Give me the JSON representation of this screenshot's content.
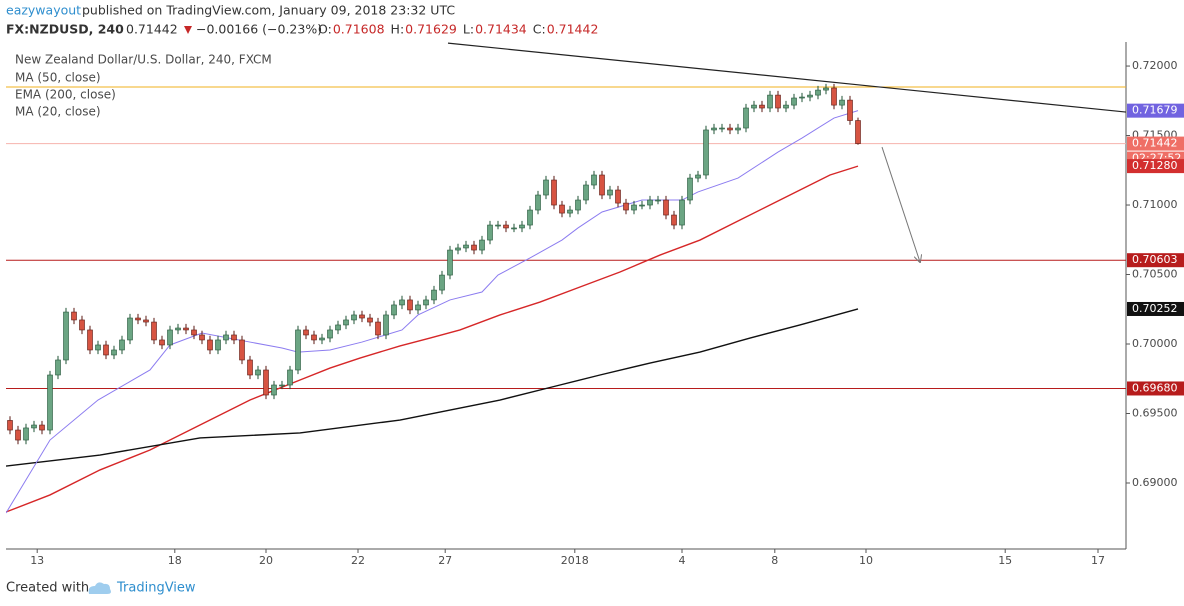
{
  "header": {
    "author": "eazywayout",
    "published": "published on TradingView.com, January 09, 2018 23:32 UTC",
    "symbol": "FX:NZDUSD, 240",
    "last": "0.71442",
    "change": "−0.00166 (−0.23%)",
    "ohlc": [
      {
        "label": "O:",
        "value": "0.71608"
      },
      {
        "label": "H:",
        "value": "0.71629"
      },
      {
        "label": "L:",
        "value": "0.71434"
      },
      {
        "label": "C:",
        "value": "0.71442"
      }
    ]
  },
  "chart_data": {
    "type": "candlestick",
    "title": "New Zealand Dollar/U.S. Dollar, 240, FXCM",
    "color_up": "#6ba583",
    "color_down": "#d75442",
    "edge_up": "#225437",
    "edge_down": "#5b1a13",
    "open": [
      0.6945,
      0.69381,
      0.69309,
      0.69396,
      0.69417,
      0.69381,
      0.69777,
      0.69885,
      0.7023,
      0.70173,
      0.70101,
      0.69957,
      0.69993,
      0.69921,
      0.69957,
      0.70029,
      0.70187,
      0.70173,
      0.70158,
      0.70029,
      0.69993,
      0.70101,
      0.70115,
      0.70101,
      0.70065,
      0.70029,
      0.69957,
      0.70029,
      0.70065,
      0.70029,
      0.69885,
      0.69777,
      0.69813,
      0.69633,
      0.69705,
      0.69705,
      0.69813,
      0.70101,
      0.70065,
      0.70029,
      0.70043,
      0.70101,
      0.70137,
      0.70173,
      0.70209,
      0.70187,
      0.70158,
      0.70065,
      0.70209,
      0.70281,
      0.70317,
      0.70245,
      0.70281,
      0.70317,
      0.70388,
      0.70496,
      0.70676,
      0.70691,
      0.70712,
      0.70676,
      0.70748,
      0.70856,
      0.70856,
      0.70835,
      0.70835,
      0.70856,
      0.70964,
      0.71072,
      0.7118,
      0.71,
      0.70942,
      0.70964,
      0.71036,
      0.71144,
      0.71216,
      0.71072,
      0.71108,
      0.71014,
      0.70964,
      0.71,
      0.71,
      0.71036,
      0.71036,
      0.70928,
      0.70856,
      0.71036,
      0.71194,
      0.71216,
      0.7154,
      0.71554,
      0.71554,
      0.7154,
      0.71554,
      0.71698,
      0.71719,
      0.71698,
      0.71791,
      0.71698,
      0.71719,
      0.7177,
      0.71777,
      0.71791,
      0.71827,
      0.71842,
      0.71719,
      0.71755,
      0.71608
    ],
    "high": [
      0.6948,
      0.69411,
      0.69426,
      0.69447,
      0.69447,
      0.69807,
      0.69915,
      0.7026,
      0.7026,
      0.70203,
      0.70131,
      0.70023,
      0.70023,
      0.69987,
      0.70059,
      0.70217,
      0.70217,
      0.70203,
      0.70188,
      0.70059,
      0.70131,
      0.70145,
      0.70145,
      0.70131,
      0.70095,
      0.70059,
      0.70059,
      0.70095,
      0.70095,
      0.70059,
      0.69915,
      0.69843,
      0.69843,
      0.69735,
      0.69735,
      0.69843,
      0.70131,
      0.70131,
      0.70095,
      0.70073,
      0.70131,
      0.70167,
      0.70203,
      0.70239,
      0.70239,
      0.70217,
      0.70188,
      0.70239,
      0.70311,
      0.70347,
      0.70347,
      0.70311,
      0.70347,
      0.70418,
      0.70526,
      0.70706,
      0.70721,
      0.70742,
      0.70742,
      0.70778,
      0.70886,
      0.70886,
      0.70886,
      0.70865,
      0.70886,
      0.70994,
      0.71102,
      0.7121,
      0.7121,
      0.7103,
      0.70994,
      0.71066,
      0.71174,
      0.71246,
      0.71246,
      0.71138,
      0.71138,
      0.71044,
      0.7103,
      0.7103,
      0.71066,
      0.71066,
      0.71066,
      0.70958,
      0.71066,
      0.71224,
      0.71246,
      0.7157,
      0.71584,
      0.71584,
      0.71584,
      0.71584,
      0.71728,
      0.71749,
      0.71749,
      0.71821,
      0.71821,
      0.71749,
      0.718,
      0.71807,
      0.71821,
      0.71857,
      0.71872,
      0.71872,
      0.71785,
      0.71785,
      0.71629
    ],
    "low": [
      0.69351,
      0.69279,
      0.69279,
      0.69366,
      0.69351,
      0.69351,
      0.69747,
      0.69855,
      0.70143,
      0.70071,
      0.69927,
      0.69927,
      0.69891,
      0.69891,
      0.69927,
      0.69999,
      0.70143,
      0.70128,
      0.69999,
      0.69963,
      0.69963,
      0.70071,
      0.70071,
      0.70035,
      0.69999,
      0.69927,
      0.69927,
      0.69999,
      0.69999,
      0.69855,
      0.69747,
      0.69747,
      0.69603,
      0.69603,
      0.69675,
      0.69675,
      0.69783,
      0.70035,
      0.69999,
      0.69999,
      0.70013,
      0.70071,
      0.70107,
      0.70143,
      0.70157,
      0.70128,
      0.70035,
      0.70035,
      0.70179,
      0.70251,
      0.70215,
      0.70215,
      0.70251,
      0.70287,
      0.70358,
      0.70466,
      0.70646,
      0.70661,
      0.70646,
      0.70646,
      0.70718,
      0.70826,
      0.70805,
      0.70805,
      0.70805,
      0.70826,
      0.70934,
      0.71042,
      0.7097,
      0.70912,
      0.70912,
      0.70934,
      0.71006,
      0.71114,
      0.71042,
      0.71042,
      0.70984,
      0.70934,
      0.70934,
      0.7097,
      0.7097,
      0.71006,
      0.70898,
      0.70826,
      0.70826,
      0.71006,
      0.71164,
      0.71186,
      0.7151,
      0.71524,
      0.7151,
      0.7151,
      0.71524,
      0.71668,
      0.71668,
      0.71668,
      0.71668,
      0.71668,
      0.71689,
      0.7174,
      0.71747,
      0.71761,
      0.71797,
      0.71689,
      0.71689,
      0.71578,
      0.71434
    ],
    "close": [
      0.69381,
      0.69309,
      0.69396,
      0.69417,
      0.69381,
      0.69777,
      0.69885,
      0.7023,
      0.70173,
      0.70101,
      0.69957,
      0.69993,
      0.69921,
      0.69957,
      0.70029,
      0.70187,
      0.70173,
      0.70158,
      0.70029,
      0.69993,
      0.70101,
      0.70115,
      0.70101,
      0.70065,
      0.70029,
      0.69957,
      0.70029,
      0.70065,
      0.70029,
      0.69885,
      0.69777,
      0.69813,
      0.69633,
      0.69705,
      0.69705,
      0.69813,
      0.70101,
      0.70065,
      0.70029,
      0.70043,
      0.70101,
      0.70137,
      0.70173,
      0.70209,
      0.70187,
      0.70158,
      0.70065,
      0.70209,
      0.70281,
      0.70317,
      0.70245,
      0.70281,
      0.70317,
      0.70388,
      0.70496,
      0.70676,
      0.70691,
      0.70712,
      0.70676,
      0.70748,
      0.70856,
      0.70856,
      0.70835,
      0.70835,
      0.70856,
      0.70964,
      0.71072,
      0.7118,
      0.71,
      0.70942,
      0.70964,
      0.71036,
      0.71144,
      0.71216,
      0.71072,
      0.71108,
      0.71014,
      0.70964,
      0.71,
      0.71,
      0.71036,
      0.71036,
      0.70928,
      0.70856,
      0.71036,
      0.71194,
      0.71216,
      0.7154,
      0.71554,
      0.71554,
      0.7154,
      0.71554,
      0.71698,
      0.71719,
      0.71698,
      0.71791,
      0.71698,
      0.71719,
      0.7177,
      0.71777,
      0.71791,
      0.71827,
      0.71842,
      0.71719,
      0.71755,
      0.71608,
      0.71442
    ],
    "series": [
      {
        "name": "MA (50, close)",
        "color": "#d62728",
        "x": [
          -0.5,
          5,
          11.25,
          17.5,
          23.75,
          30,
          36.25,
          40,
          43.75,
          48.75,
          52.5,
          56.25,
          61.25,
          66.25,
          71.25,
          76.25,
          81.25,
          86.25,
          91.25,
          95,
          98.75,
          102.5,
          106
        ],
        "values": [
          0.68791,
          0.68914,
          0.69094,
          0.69237,
          0.69417,
          0.69597,
          0.69741,
          0.69827,
          0.69899,
          0.69986,
          0.70043,
          0.70101,
          0.70209,
          0.70302,
          0.7041,
          0.70518,
          0.7064,
          0.70748,
          0.70892,
          0.71,
          0.71108,
          0.71216,
          0.7128
        ]
      },
      {
        "name": "EMA (200, close)",
        "color": "#111111",
        "x": [
          -0.5,
          11.25,
          23.75,
          36.25,
          48.75,
          61.25,
          68.75,
          73.75,
          80,
          86.25,
          92.5,
          98.75,
          106
        ],
        "values": [
          0.69122,
          0.69201,
          0.69324,
          0.6936,
          0.69453,
          0.69597,
          0.69705,
          0.69777,
          0.69863,
          0.69942,
          0.70043,
          0.70137,
          0.70252
        ]
      },
      {
        "name": "MA (20, close)",
        "color": "#8c7cf0",
        "x": [
          -0.5,
          5,
          11,
          17.5,
          20,
          24,
          30,
          34,
          36,
          40,
          44,
          49,
          51,
          55,
          59,
          61,
          65,
          69,
          71,
          74,
          79,
          84,
          86,
          91,
          96,
          99,
          103,
          106
        ],
        "values": [
          0.68784,
          0.69309,
          0.69597,
          0.69813,
          0.69993,
          0.70079,
          0.70014,
          0.69971,
          0.69942,
          0.69957,
          0.70014,
          0.70101,
          0.70209,
          0.70317,
          0.70374,
          0.70496,
          0.70619,
          0.70748,
          0.70835,
          0.7095,
          0.71036,
          0.71036,
          0.71094,
          0.71194,
          0.71381,
          0.71482,
          0.71626,
          0.71679
        ]
      }
    ],
    "hlines": [
      {
        "value": 0.71849,
        "color": "#f2b01e"
      },
      {
        "value": 0.70603,
        "color": "#b71c1c"
      },
      {
        "value": 0.6968,
        "color": "#b71c1c"
      },
      {
        "value": 0.71442,
        "color": "#f6b3ad"
      }
    ],
    "trendline": {
      "x": [
        54.75,
        139.5
      ],
      "values": [
        0.72165,
        0.71669
      ],
      "color": "#222222"
    },
    "arrow": {
      "x": [
        109,
        113.75
      ],
      "values": [
        0.71417,
        0.7059
      ],
      "color": "#777777"
    },
    "price_tags": [
      {
        "value": 0.71679,
        "label": "0.71679",
        "color": "#7163e0"
      },
      {
        "value": 0.71442,
        "label": "0.71442",
        "color": "#ef6f66"
      },
      {
        "value": 0.7128,
        "label": "0.71280",
        "color": "#d32f2f"
      },
      {
        "value": 0.70603,
        "label": "0.70603",
        "color": "#b71c1c"
      },
      {
        "value": 0.70252,
        "label": "0.70252",
        "color": "#111111"
      },
      {
        "value": 0.6968,
        "label": "0.69680",
        "color": "#b71c1c"
      }
    ],
    "countdown": "02:27:52",
    "xlim": [
      -0.5,
      139.5
    ],
    "ylim": [
      0.68525,
      0.72173
    ],
    "yticks": [
      {
        "value": 0.69,
        "label": "0.69000"
      },
      {
        "value": 0.695,
        "label": "0.69500"
      },
      {
        "value": 0.7,
        "label": "0.70000"
      },
      {
        "value": 0.705,
        "label": "0.70500"
      },
      {
        "value": 0.71,
        "label": "0.71000"
      },
      {
        "value": 0.715,
        "label": "0.71500"
      },
      {
        "value": 0.72,
        "label": "0.72000"
      }
    ],
    "xticks": [
      {
        "value": 3.4,
        "label": "13"
      },
      {
        "value": 20.6,
        "label": "18"
      },
      {
        "value": 32,
        "label": "20"
      },
      {
        "value": 43.5,
        "label": "22"
      },
      {
        "value": 54.4,
        "label": "27"
      },
      {
        "value": 70.6,
        "label": "2018"
      },
      {
        "value": 84,
        "label": "4"
      },
      {
        "value": 95.6,
        "label": "8"
      },
      {
        "value": 107,
        "label": "10"
      },
      {
        "value": 124.4,
        "label": "15"
      },
      {
        "value": 136,
        "label": "17"
      }
    ]
  },
  "footer": {
    "created": "Created with",
    "brand": "TradingView"
  }
}
